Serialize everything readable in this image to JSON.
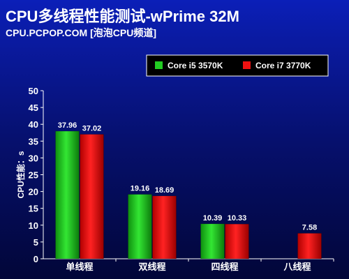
{
  "header": {
    "title": "CPU多线程性能测试-wPrime 32M",
    "subtitle": "CPU.PCPOP.COM [泡泡CPU频道]"
  },
  "chart_data": {
    "type": "bar",
    "categories": [
      "单线程",
      "双线程",
      "四线程",
      "八线程"
    ],
    "series": [
      {
        "name": "Core i5 3570K",
        "color": "#22cc22",
        "values": [
          37.96,
          19.16,
          10.39,
          null
        ]
      },
      {
        "name": "Core i7 3770K",
        "color": "#ee1111",
        "values": [
          37.02,
          18.69,
          10.33,
          7.58
        ]
      }
    ],
    "value_labels": [
      [
        "37.96",
        "19.16",
        "10.39",
        null
      ],
      [
        "37.02",
        "18.69",
        "10.33",
        "7.58"
      ]
    ],
    "ylabel": "CPU性能：s",
    "xlabel": "",
    "ylim": [
      0,
      50
    ],
    "yticks": [
      "0",
      "5",
      "10",
      "15",
      "20",
      "25",
      "30",
      "35",
      "40",
      "45",
      "50"
    ],
    "grid": false,
    "legend_position": "top-right"
  }
}
